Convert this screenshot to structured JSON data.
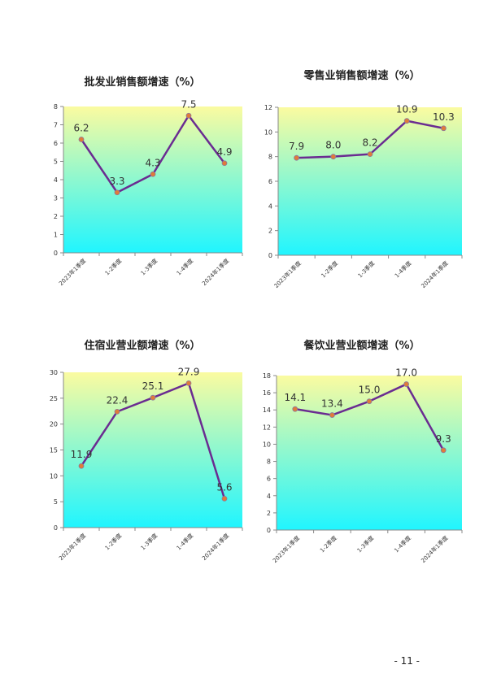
{
  "page_number": "- 11 -",
  "colors": {
    "line": "#6a2c91",
    "marker": "#e07b39",
    "grad_top": "#fbfba0",
    "grad_bottom": "#20f5ff",
    "axis": "#888888"
  },
  "chart_data": [
    {
      "type": "line",
      "title": "批发业销售额增速（%）",
      "categories": [
        "2023年1季度",
        "1-2季度",
        "1-3季度",
        "1-4季度",
        "2024年1季度"
      ],
      "values": [
        6.2,
        3.3,
        4.3,
        7.5,
        4.9
      ],
      "labels": [
        "6.2",
        "3.3",
        "4.3",
        "7.5",
        "4.9"
      ],
      "ylim": [
        0,
        8
      ],
      "yticks": [
        "0",
        "1",
        "2",
        "3",
        "4",
        "5",
        "6",
        "7",
        "8"
      ]
    },
    {
      "type": "line",
      "title": "零售业销售额增速（%）",
      "categories": [
        "2023年1季度",
        "1-2季度",
        "1-3季度",
        "1-4季度",
        "2024年1季度"
      ],
      "values": [
        7.9,
        8.0,
        8.2,
        10.9,
        10.3
      ],
      "labels": [
        "7.9",
        "8.0",
        "8.2",
        "10.9",
        "10.3"
      ],
      "ylim": [
        0,
        12
      ],
      "yticks": [
        "0",
        "2",
        "4",
        "6",
        "8",
        "10",
        "12"
      ]
    },
    {
      "type": "line",
      "title": "住宿业营业额增速（%）",
      "categories": [
        "2023年1季度",
        "1-2季度",
        "1-3季度",
        "1-4季度",
        "2024年1季度"
      ],
      "values": [
        11.9,
        22.4,
        25.1,
        27.9,
        5.6
      ],
      "labels": [
        "11.9",
        "22.4",
        "25.1",
        "27.9",
        "5.6"
      ],
      "ylim": [
        0,
        30
      ],
      "yticks": [
        "0",
        "5",
        "10",
        "15",
        "20",
        "25",
        "30"
      ]
    },
    {
      "type": "line",
      "title": "餐饮业营业额增速（%）",
      "categories": [
        "2023年1季度",
        "1-2季度",
        "1-3季度",
        "1-4季度",
        "2024年1季度"
      ],
      "values": [
        14.1,
        13.4,
        15.0,
        17.0,
        9.3
      ],
      "labels": [
        "14.1",
        "13.4",
        "15.0",
        "17.0",
        "9.3"
      ],
      "ylim": [
        0,
        18
      ],
      "yticks": [
        "0",
        "2",
        "4",
        "6",
        "8",
        "10",
        "12",
        "14",
        "16",
        "18"
      ]
    }
  ]
}
